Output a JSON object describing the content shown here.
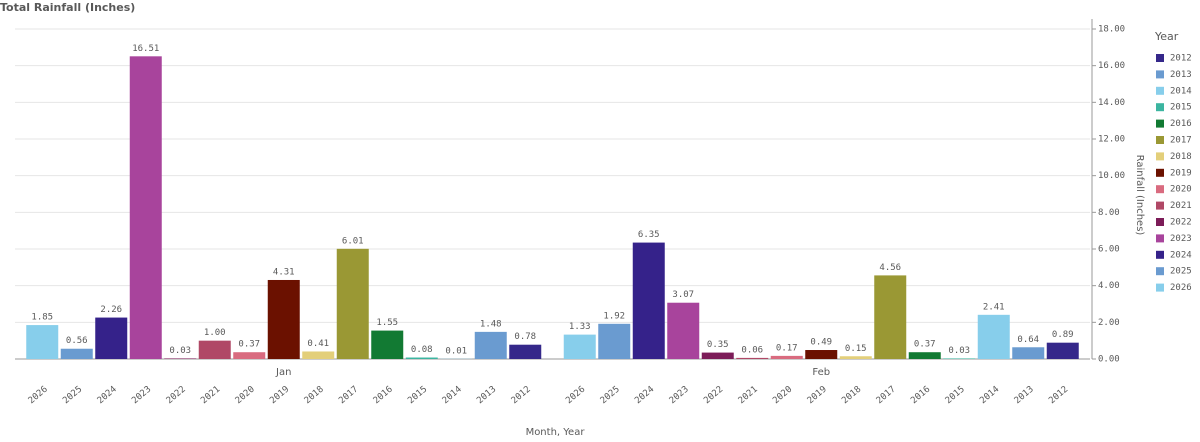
{
  "chart_data": {
    "type": "bar",
    "title": "Total Rainfall (Inches)",
    "x_label": "Month, Year",
    "y_label": "Rainfall (Inches)",
    "legend_title": "Year",
    "categories": [
      "Jan",
      "Feb"
    ],
    "series": [
      {
        "name": "2012",
        "color": "#35288a",
        "values": [
          0.78,
          0.89
        ],
        "value_labels": [
          "0.78",
          "0.89"
        ]
      },
      {
        "name": "2013",
        "color": "#6a9bd0",
        "values": [
          1.48,
          0.64
        ],
        "value_labels": [
          "1.48",
          "0.64"
        ]
      },
      {
        "name": "2014",
        "color": "#87ceeb",
        "values": [
          0.01,
          2.41
        ],
        "value_labels": [
          "0.01",
          "2.41"
        ]
      },
      {
        "name": "2015",
        "color": "#3bb5a0",
        "values": [
          0.08,
          0.03
        ],
        "value_labels": [
          "0.08",
          "0.03"
        ]
      },
      {
        "name": "2016",
        "color": "#127a33",
        "values": [
          1.55,
          0.37
        ],
        "value_labels": [
          "1.55",
          "0.37"
        ]
      },
      {
        "name": "2017",
        "color": "#9a9834",
        "values": [
          6.01,
          4.56
        ],
        "value_labels": [
          "6.01",
          "4.56"
        ]
      },
      {
        "name": "2018",
        "color": "#e3cf7a",
        "values": [
          0.41,
          0.15
        ],
        "value_labels": [
          "0.41",
          "0.15"
        ]
      },
      {
        "name": "2019",
        "color": "#6b1100",
        "values": [
          4.31,
          0.49
        ],
        "value_labels": [
          "4.31",
          "0.49"
        ]
      },
      {
        "name": "2020",
        "color": "#d96b7f",
        "values": [
          0.37,
          0.17
        ],
        "value_labels": [
          "0.37",
          "0.17"
        ]
      },
      {
        "name": "2021",
        "color": "#b04866",
        "values": [
          1.0,
          0.06
        ],
        "value_labels": [
          "1.00",
          "0.06"
        ]
      },
      {
        "name": "2022",
        "color": "#7c1c58",
        "values": [
          0.03,
          0.35
        ],
        "value_labels": [
          "0.03",
          "0.35"
        ]
      },
      {
        "name": "2023",
        "color": "#a8449c",
        "values": [
          16.51,
          3.07
        ],
        "value_labels": [
          "16.51",
          "3.07"
        ]
      },
      {
        "name": "2024",
        "color": "#35228a",
        "values": [
          2.26,
          6.35
        ],
        "value_labels": [
          "2.26",
          "6.35"
        ]
      },
      {
        "name": "2025",
        "color": "#6a9bd0",
        "values": [
          0.56,
          1.92
        ],
        "value_labels": [
          "0.56",
          "1.92"
        ]
      },
      {
        "name": "2026",
        "color": "#87ceeb",
        "values": [
          1.85,
          1.33
        ],
        "value_labels": [
          "1.85",
          "1.33"
        ]
      }
    ],
    "ylim": [
      0,
      18
    ],
    "yticks": [
      {
        "value": 0,
        "label": "0.00"
      },
      {
        "value": 2,
        "label": "2.00"
      },
      {
        "value": 4,
        "label": "4.00"
      },
      {
        "value": 6,
        "label": "6.00"
      },
      {
        "value": 8,
        "label": "8.00"
      },
      {
        "value": 10,
        "label": "10.00"
      },
      {
        "value": 12,
        "label": "12.00"
      },
      {
        "value": 14,
        "label": "14.00"
      },
      {
        "value": 16,
        "label": "16.00"
      },
      {
        "value": 18,
        "label": "18.00"
      }
    ],
    "grid": true
  }
}
